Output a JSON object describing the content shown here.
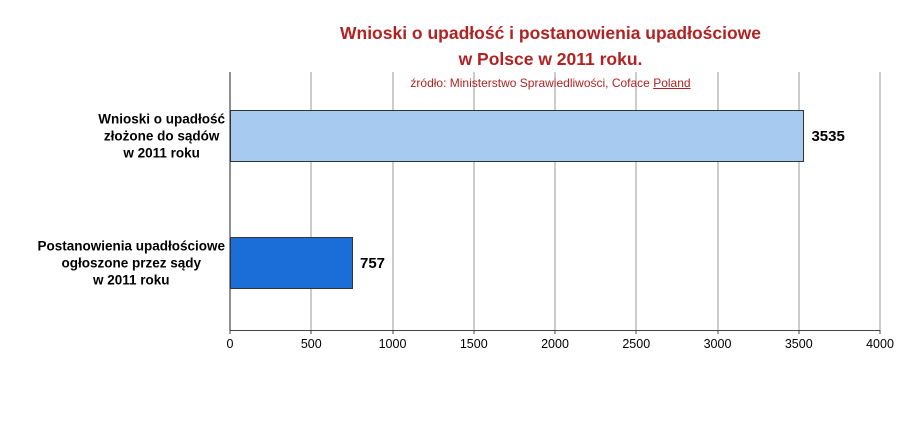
{
  "title": {
    "line1": "Wnioski o upadłość i postanowienia upadłościowe",
    "line2": "w Polsce w 2011 roku."
  },
  "subtitle": {
    "prefix": "źródło: Ministerstwo Sprawiedliwości, Coface ",
    "underlined": "Poland"
  },
  "colors": {
    "title": "#B22222",
    "subtitle": "#B22222",
    "grid": "#999999",
    "axis": "#444444",
    "text": "#000000"
  },
  "chart_data": {
    "type": "bar",
    "orientation": "horizontal",
    "title": "Wnioski o upadłość i postanowienia upadłościowe w Polsce w 2011 roku.",
    "source": "źródło: Ministerstwo Sprawiedliwości, Coface Poland",
    "categories": [
      "Wnioski o upadłość\nzłożone do sądów\nw 2011 roku",
      "Postanowienia upadłościowe\nogłoszone przez sądy\nw 2011 roku"
    ],
    "values": [
      3535,
      757
    ],
    "value_labels": [
      "3535",
      "757"
    ],
    "bar_colors": [
      "#A6CAF0",
      "#1B6ED8"
    ],
    "xlim": [
      0,
      4000
    ],
    "xticks": [
      0,
      500,
      1000,
      1500,
      2000,
      2500,
      3000,
      3500,
      4000
    ],
    "grid": "vertical-gridlines",
    "legend": "none"
  }
}
